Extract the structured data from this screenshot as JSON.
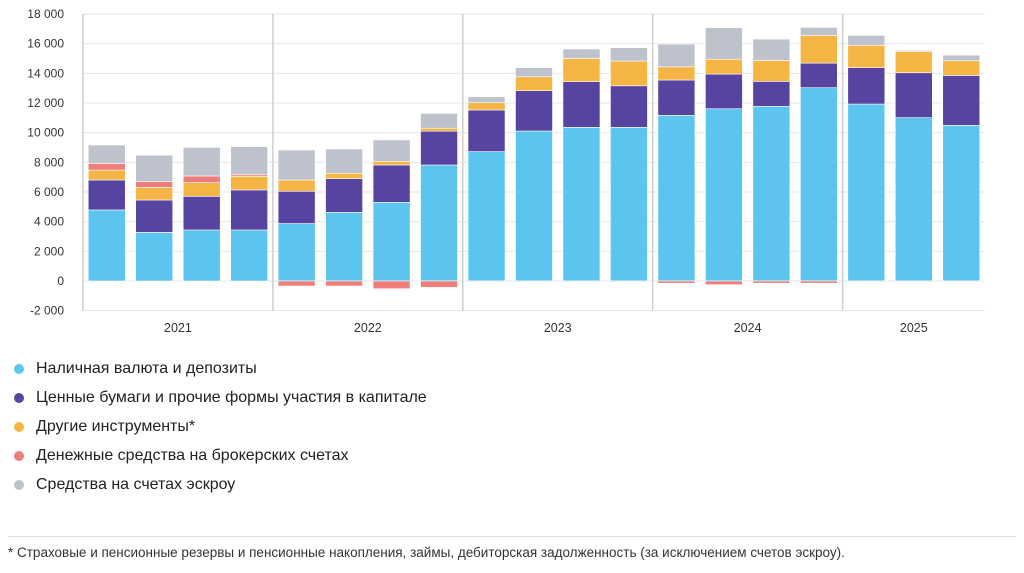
{
  "chart_data": {
    "type": "bar",
    "stacked": true,
    "ylim": [
      -2000,
      18000
    ],
    "yticks": [
      -2000,
      0,
      2000,
      4000,
      6000,
      8000,
      10000,
      12000,
      14000,
      16000,
      18000
    ],
    "ytick_labels": [
      "-2 000",
      "0",
      "2 000",
      "4 000",
      "6 000",
      "8 000",
      "10 000",
      "12 000",
      "14 000",
      "16 000",
      "18 000"
    ],
    "grid": true,
    "groups": [
      {
        "label": "2021",
        "count": 4
      },
      {
        "label": "2022",
        "count": 4
      },
      {
        "label": "2023",
        "count": 4
      },
      {
        "label": "2024",
        "count": 4
      },
      {
        "label": "2025",
        "count": 3
      }
    ],
    "legend_position": "bottom-left",
    "series": [
      {
        "name": "Наличная валюта и депозиты",
        "color": "#5bc5ef",
        "values": [
          4790,
          3280,
          3440,
          3440,
          3870,
          4630,
          5300,
          7820,
          8720,
          10110,
          10360,
          10360,
          11170,
          11610,
          11770,
          13030,
          11930,
          11010,
          10490
        ]
      },
      {
        "name": "Ценные бумаги и прочие формы участия в капитале",
        "color": "#5744a0",
        "values": [
          2020,
          2180,
          2270,
          2700,
          2180,
          2270,
          2520,
          2280,
          2810,
          2720,
          3080,
          2800,
          2380,
          2340,
          1690,
          1660,
          2450,
          3030,
          3370
        ]
      },
      {
        "name": "Другие инструменты*",
        "color": "#f4b544",
        "values": [
          670,
          850,
          920,
          920,
          760,
          360,
          250,
          200,
          490,
          940,
          1570,
          1670,
          890,
          1000,
          1410,
          1870,
          1510,
          1440,
          990
        ]
      },
      {
        "name": "Денежные средства на брокерских счетах",
        "color": "#ef7d7a",
        "values": [
          430,
          400,
          450,
          100,
          -340,
          -340,
          -520,
          -430,
          -50,
          -50,
          -50,
          -50,
          -150,
          -250,
          -150,
          -150,
          -50,
          -50,
          -50
        ]
      },
      {
        "name": "Средства на счетах эскроу",
        "color": "#bec2cc",
        "values": [
          1260,
          1770,
          1930,
          1900,
          2020,
          1640,
          1440,
          1000,
          400,
          610,
          630,
          900,
          1530,
          2130,
          1440,
          540,
          670,
          70,
          380
        ]
      }
    ]
  },
  "footnote": "* Страховые и пенсионные резервы и пенсионные накопления, займы, дебиторская задолженность (за исключением счетов эскроу)."
}
